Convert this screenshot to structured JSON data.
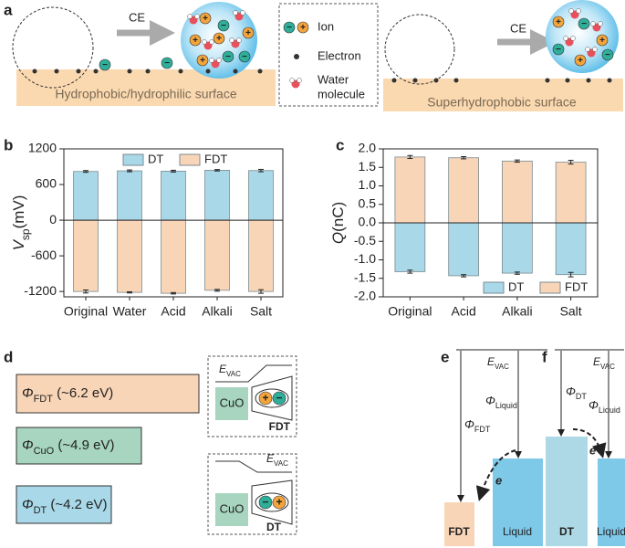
{
  "chart_data": [
    {
      "type": "bar",
      "panel": "b",
      "ylabel": {
        "symbol": "V",
        "sub": "sp",
        "unit": "(mV)"
      },
      "categories": [
        "Original",
        "Water",
        "Acid",
        "Alkali",
        "Salt"
      ],
      "series": [
        {
          "name": "DT",
          "color": "#a9d8e8",
          "values": [
            820,
            830,
            825,
            840,
            835
          ],
          "errors": [
            15,
            15,
            15,
            12,
            20
          ]
        },
        {
          "name": "FDT",
          "color": "#f9d5b8",
          "values": [
            -1200,
            -1215,
            -1230,
            -1180,
            -1200
          ],
          "errors": [
            25,
            10,
            12,
            15,
            30
          ]
        }
      ],
      "ylim": [
        -1290,
        1200
      ],
      "yticks": [
        -1200,
        -600,
        0,
        600,
        1200
      ],
      "legend": "top"
    },
    {
      "type": "bar",
      "panel": "c",
      "ylabel": {
        "symbol": "Q",
        "sub": "",
        "unit": "(nC)"
      },
      "categories": [
        "Original",
        "Acid",
        "Alkali",
        "Salt"
      ],
      "series": [
        {
          "name": "DT",
          "color": "#a9d8e8",
          "values": [
            -1.32,
            -1.43,
            -1.36,
            -1.4
          ],
          "errors": [
            0.04,
            0.03,
            0.03,
            0.06
          ]
        },
        {
          "name": "FDT",
          "color": "#f9d5b8",
          "values": [
            1.78,
            1.76,
            1.67,
            1.64
          ],
          "errors": [
            0.04,
            0.03,
            0.03,
            0.05
          ]
        }
      ],
      "ylim": [
        -2,
        2
      ],
      "yticks": [
        {
          "value": -2,
          "label": "-2.0"
        },
        {
          "value": -1.5,
          "label": "-1.5"
        },
        {
          "value": -1,
          "label": "-1.0"
        },
        {
          "value": -0.5,
          "label": "-0.5"
        },
        {
          "value": 0,
          "label": "0.0"
        },
        {
          "value": 0.5,
          "label": "0.5"
        },
        {
          "value": 1,
          "label": "1.0"
        },
        {
          "value": 1.5,
          "label": "1.5"
        },
        {
          "value": 2,
          "label": "2.0"
        }
      ],
      "legend": "lower right"
    }
  ],
  "panel_a": {
    "label": "a",
    "ce": "CE",
    "plus": "+",
    "minus": "−",
    "ion": "Ion",
    "electron": "Electron",
    "water": [
      "Water",
      "molecule"
    ],
    "surface_left": "Hydrophobic/hydrophilic surface",
    "surface_right": "Superhydrophobic surface"
  },
  "panel_labels": {
    "b": "b",
    "c": "c"
  },
  "panel_d": {
    "label": "d",
    "bars": [
      {
        "symbol": "Φ",
        "sub": "FDT",
        "text": " (~6.2 eV)"
      },
      {
        "symbol": "Φ",
        "sub": "CuO",
        "text": " (~4.9 eV)"
      },
      {
        "symbol": "Φ",
        "sub": "DT",
        "text": " (~4.2 eV)"
      }
    ],
    "evac": {
      "symbol": "E",
      "sub": "VAC"
    },
    "cuo": "CuO",
    "inset_top": "FDT",
    "inset_bottom": "DT"
  },
  "panel_e": {
    "label": "e",
    "evac": {
      "symbol": "E",
      "sub": "VAC"
    },
    "phi_left": {
      "symbol": "Φ",
      "sub": "FDT"
    },
    "phi_right": {
      "symbol": "Φ",
      "sub": "Liquid"
    },
    "electron": "e",
    "box_left": "FDT",
    "box_right": "Liquid"
  },
  "panel_f": {
    "label": "f",
    "evac": {
      "symbol": "E",
      "sub": "VAC"
    },
    "phi_left": {
      "symbol": "Φ",
      "sub": "DT"
    },
    "phi_right": {
      "symbol": "Φ",
      "sub": "Liquid"
    },
    "electron": "e",
    "box_left": "DT",
    "box_right": "Liquid"
  }
}
